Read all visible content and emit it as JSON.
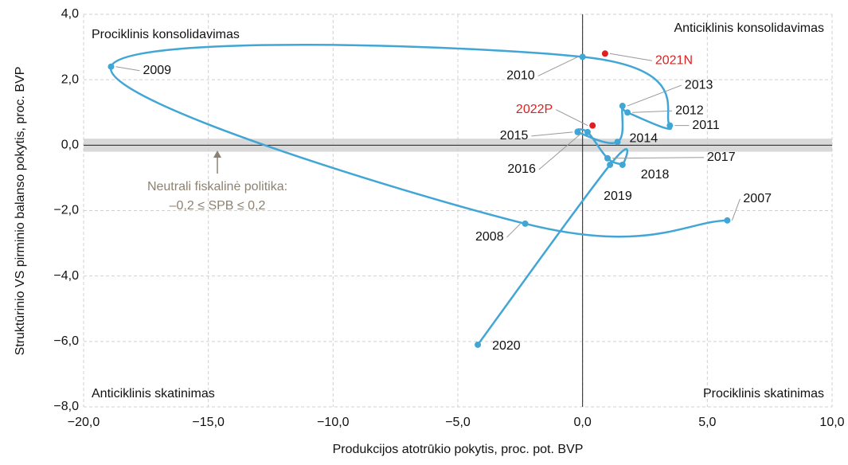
{
  "chart_data": {
    "type": "scatter",
    "xlabel": "Produkcijos atotrūkio pokytis, proc. pot. BVP",
    "ylabel": "Struktūrinio VS pirminio balanso pokytis, proc. BVP",
    "xlim": [
      -20,
      10
    ],
    "ylim": [
      -8,
      4
    ],
    "xticks": [
      {
        "value": -20,
        "label": "−20,0"
      },
      {
        "value": -15,
        "label": "−15,0"
      },
      {
        "value": -10,
        "label": "−10,0"
      },
      {
        "value": -5,
        "label": "−5,0"
      },
      {
        "value": 0,
        "label": "0,0"
      },
      {
        "value": 5,
        "label": "5,0"
      },
      {
        "value": 10,
        "label": "10,0"
      }
    ],
    "yticks": [
      {
        "value": -8,
        "label": "−8,0"
      },
      {
        "value": -6,
        "label": "−6,0"
      },
      {
        "value": -4,
        "label": "−4,0"
      },
      {
        "value": -2,
        "label": "−2,0"
      },
      {
        "value": 0,
        "label": "0,0"
      },
      {
        "value": 2,
        "label": "2,0"
      },
      {
        "value": 4,
        "label": "4,0"
      }
    ],
    "grid": true,
    "quadrants": [
      "Prociklinis konsolidavimas",
      "Anticiklinis konsolidavimas",
      "Anticiklinis skatinimas",
      "Prociklinis skatinimas"
    ],
    "neutral_band": {
      "lim": [
        -0.2,
        0.2
      ],
      "color": "#d9d9d9",
      "labels": [
        "Neutrali fiskalinė politika:",
        "–0,2 ≤ SPB ≤ 0,2"
      ],
      "label_color": "#8c8273"
    },
    "series": [
      {
        "color": "#41a6d6",
        "labels": [
          "2007",
          "2008",
          "2009",
          "2010",
          "2011",
          "2012",
          "2013",
          "2014",
          "2015",
          "2016",
          "2017",
          "2018",
          "2019",
          "2020"
        ],
        "x": [
          5.8,
          -2.3,
          -18.9,
          0.0,
          3.5,
          1.8,
          1.6,
          1.4,
          -0.2,
          0.2,
          1.0,
          1.6,
          1.1,
          -4.2
        ],
        "values": [
          -2.3,
          -2.4,
          2.4,
          2.7,
          0.6,
          1.0,
          1.2,
          0.1,
          0.4,
          0.4,
          -0.4,
          -0.6,
          -0.6,
          -6.1
        ]
      },
      {
        "color": "#e02020",
        "labels": [
          "2021N",
          "2022P"
        ],
        "x": [
          0.9,
          0.4
        ],
        "values": [
          2.8,
          0.6
        ]
      }
    ]
  }
}
